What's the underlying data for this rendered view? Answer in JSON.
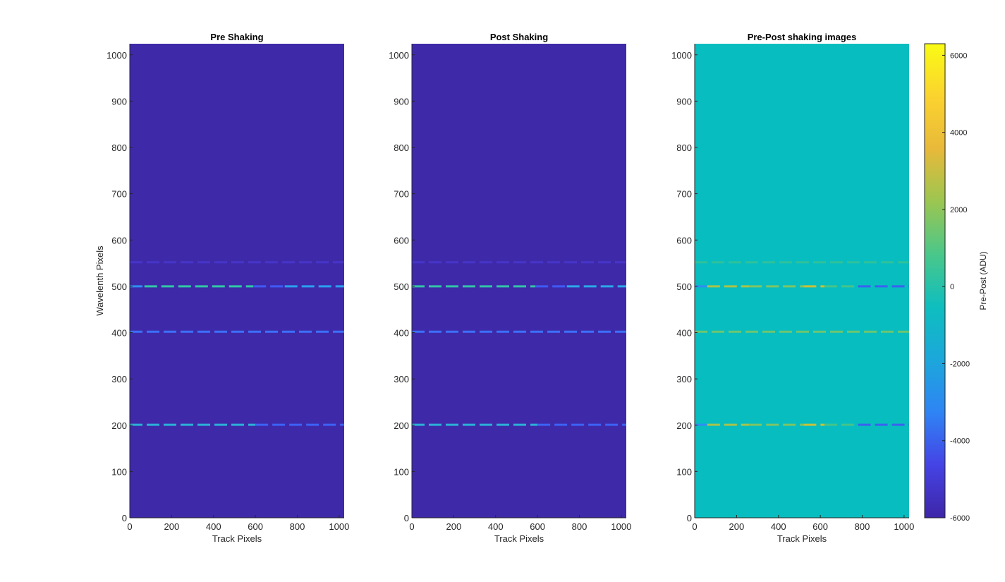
{
  "chart_data": [
    {
      "type": "heatmap",
      "title": "Pre Shaking",
      "xlabel": "Track Pixels",
      "ylabel": "Wavelenth Pixels",
      "xlim": [
        0,
        1024
      ],
      "ylim": [
        0,
        1024
      ],
      "xticks": [
        0,
        200,
        400,
        600,
        800,
        1000
      ],
      "yticks": [
        0,
        100,
        200,
        300,
        400,
        500,
        600,
        700,
        800,
        900,
        1000
      ],
      "background_color": "#3e2aa9",
      "lines": [
        {
          "y": 552,
          "segments": [
            {
              "x": [
                0,
                1024
              ],
              "color": "#4634c9"
            }
          ]
        },
        {
          "y": 500,
          "segments": [
            {
              "x": [
                0,
                70
              ],
              "color": "#2f8ef2"
            },
            {
              "x": [
                70,
                590
              ],
              "color": "#31c8a5"
            },
            {
              "x": [
                590,
                740
              ],
              "color": "#3f5af5"
            },
            {
              "x": [
                740,
                1024
              ],
              "color": "#2b9ff0"
            }
          ]
        },
        {
          "y": 402,
          "segments": [
            {
              "x": [
                0,
                1024
              ],
              "color": "#3b70f8"
            }
          ]
        },
        {
          "y": 201,
          "segments": [
            {
              "x": [
                0,
                600
              ],
              "color": "#2bb0d8"
            },
            {
              "x": [
                600,
                1024
              ],
              "color": "#3c62f6"
            }
          ]
        }
      ]
    },
    {
      "type": "heatmap",
      "title": "Post Shaking",
      "xlabel": "Track Pixels",
      "ylabel": "",
      "xlim": [
        0,
        1024
      ],
      "ylim": [
        0,
        1024
      ],
      "xticks": [
        0,
        200,
        400,
        600,
        800,
        1000
      ],
      "yticks": [
        0,
        100,
        200,
        300,
        400,
        500,
        600,
        700,
        800,
        900,
        1000
      ],
      "background_color": "#3e2aa9",
      "lines": [
        {
          "y": 552,
          "segments": [
            {
              "x": [
                0,
                1024
              ],
              "color": "#4634c9"
            }
          ]
        },
        {
          "y": 500,
          "segments": [
            {
              "x": [
                0,
                590
              ],
              "color": "#34c3a8"
            },
            {
              "x": [
                590,
                740
              ],
              "color": "#3f5af5"
            },
            {
              "x": [
                740,
                1024
              ],
              "color": "#2ba8e8"
            }
          ]
        },
        {
          "y": 402,
          "segments": [
            {
              "x": [
                0,
                1024
              ],
              "color": "#3b70f8"
            }
          ]
        },
        {
          "y": 201,
          "segments": [
            {
              "x": [
                0,
                600
              ],
              "color": "#2bb0d8"
            },
            {
              "x": [
                600,
                1024
              ],
              "color": "#3c62f6"
            }
          ]
        }
      ]
    },
    {
      "type": "heatmap",
      "title": "Pre-Post shaking images",
      "xlabel": "Track Pixels",
      "ylabel": "",
      "xlim": [
        0,
        1024
      ],
      "ylim": [
        0,
        1024
      ],
      "xticks": [
        0,
        200,
        400,
        600,
        800,
        1000
      ],
      "yticks": [
        0,
        100,
        200,
        300,
        400,
        500,
        600,
        700,
        800,
        900,
        1000
      ],
      "background_color": "#08bdbf",
      "lines": [
        {
          "y": 552,
          "segments": [
            {
              "x": [
                0,
                1024
              ],
              "color": "#2ec29a"
            }
          ]
        },
        {
          "y": 500,
          "segments": [
            {
              "x": [
                0,
                60
              ],
              "color": "#2f8ef2"
            },
            {
              "x": [
                60,
                260
              ],
              "color": "#a9c34a"
            },
            {
              "x": [
                260,
                520
              ],
              "color": "#7cc566"
            },
            {
              "x": [
                520,
                620
              ],
              "color": "#c7c13a"
            },
            {
              "x": [
                620,
                780
              ],
              "color": "#44c48a"
            },
            {
              "x": [
                780,
                1024
              ],
              "color": "#3a62f0"
            }
          ]
        },
        {
          "y": 402,
          "segments": [
            {
              "x": [
                0,
                1024
              ],
              "color": "#6cc670"
            }
          ]
        },
        {
          "y": 201,
          "segments": [
            {
              "x": [
                0,
                60
              ],
              "color": "#2f8ef2"
            },
            {
              "x": [
                60,
                260
              ],
              "color": "#a9c34a"
            },
            {
              "x": [
                260,
                520
              ],
              "color": "#7cc566"
            },
            {
              "x": [
                520,
                620
              ],
              "color": "#c7c13a"
            },
            {
              "x": [
                620,
                780
              ],
              "color": "#44c48a"
            },
            {
              "x": [
                780,
                1024
              ],
              "color": "#3a62f0"
            }
          ]
        }
      ]
    }
  ],
  "colorbar": {
    "label": "Pre-Post (ADU)",
    "range": [
      -6000,
      6300
    ],
    "ticks": [
      -6000,
      -4000,
      -2000,
      0,
      2000,
      4000,
      6000
    ],
    "colors": [
      "#3e26a8",
      "#4543e5",
      "#2f84f5",
      "#1ca7db",
      "#0ebebf",
      "#4ac78a",
      "#9bc651",
      "#e8b93a",
      "#fbd32f",
      "#f9fb15"
    ]
  }
}
